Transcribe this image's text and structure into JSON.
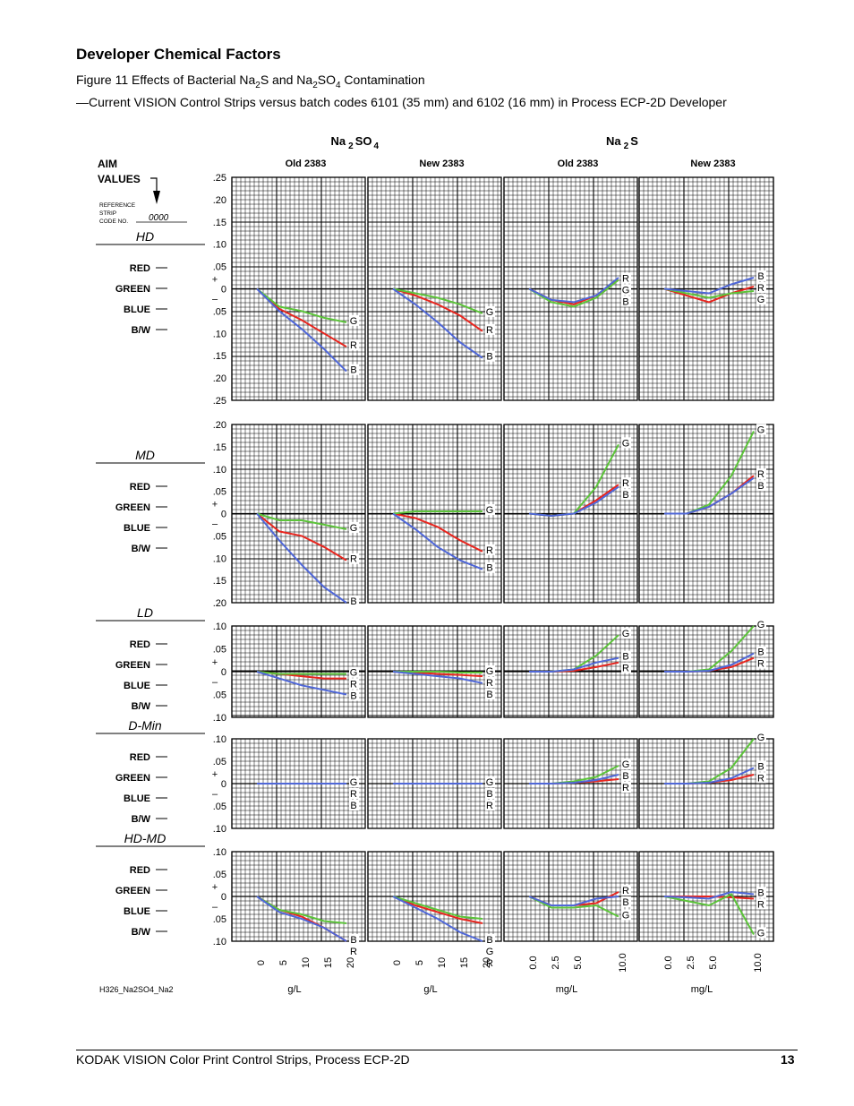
{
  "heading": "Developer Chemical Factors",
  "caption": {
    "figure_prefix": "Figure 11 Effects of Bacterial Na",
    "sub1": "2",
    "mid1": "S and Na",
    "sub2": "2",
    "mid2": "SO",
    "sub3": "4",
    "suffix": " Contamination",
    "line2": "—Current VISION Control Strips versus batch codes 6101 (35 mm) and 6102 (16 mm) in Process ECP-2D Developer"
  },
  "chart_data": {
    "type": "line",
    "chemicals": [
      {
        "base": "Na",
        "sub": "2",
        "rest": "SO",
        "sub2": "4"
      },
      {
        "base": "Na",
        "sub": "2",
        "rest": "S",
        "sub2": ""
      }
    ],
    "panels": [
      {
        "label": "Old 2383",
        "x": [
          0,
          5,
          10,
          15,
          20
        ],
        "tick_labels": [
          "0",
          "5",
          "10",
          "15",
          "20"
        ],
        "unit": "g/L"
      },
      {
        "label": "New 2383",
        "x": [
          0,
          5,
          10,
          15,
          20
        ],
        "tick_labels": [
          "0",
          "5",
          "10",
          "15",
          "20"
        ],
        "unit": "g/L"
      },
      {
        "label": "Old 2383",
        "x": [
          0,
          2.5,
          5,
          7.5,
          10
        ],
        "tick_labels": [
          "0.0",
          "2.5",
          "5.0",
          "10.0"
        ],
        "unit": "mg/L"
      },
      {
        "label": "New 2383",
        "x": [
          0,
          2.5,
          5,
          7.5,
          10
        ],
        "tick_labels": [
          "0.0",
          "2.5",
          "5.0",
          "10.0"
        ],
        "unit": "mg/L"
      }
    ],
    "aim": {
      "label_line1": "AIM",
      "label_line2": "VALUES",
      "ref_line1": "REFERENCE",
      "ref_line2": "STRIP",
      "ref_line3": "CODE NO.",
      "ref_code": "0000"
    },
    "channel_labels": [
      "RED",
      "GREEN",
      "BLUE",
      "B/W"
    ],
    "series_colors": {
      "R": "#e8251e",
      "G": "#5cc43a",
      "B": "#4f67d8"
    },
    "rows": [
      {
        "name": "HD",
        "ylim": [
          -0.25,
          0.25
        ],
        "yticks": [
          ".25",
          ".20",
          ".15",
          ".10",
          ".05",
          "0",
          ".05",
          ".10",
          ".15",
          ".20",
          ".25"
        ],
        "lines": [
          {
            "R": [
              0,
              -0.045,
              -0.07,
              -0.1,
              -0.13
            ],
            "G": [
              0,
              -0.04,
              -0.05,
              -0.065,
              -0.075
            ],
            "B": [
              0,
              -0.05,
              -0.09,
              -0.135,
              -0.185
            ],
            "labels_top_down": [
              "G",
              "R",
              "B"
            ]
          },
          {
            "R": [
              0,
              -0.015,
              -0.035,
              -0.06,
              -0.095
            ],
            "G": [
              0,
              -0.01,
              -0.02,
              -0.035,
              -0.055
            ],
            "B": [
              0,
              -0.035,
              -0.075,
              -0.12,
              -0.155
            ],
            "labels_top_down": [
              "G",
              "R",
              "B"
            ]
          },
          {
            "R": [
              0,
              -0.025,
              -0.035,
              -0.015,
              0.02
            ],
            "G": [
              0,
              -0.03,
              -0.04,
              -0.02,
              0.02
            ],
            "B": [
              0,
              -0.025,
              -0.03,
              -0.015,
              0.025
            ],
            "labels_top_down": [
              "R",
              "G",
              "B"
            ]
          },
          {
            "R": [
              0,
              -0.015,
              -0.03,
              -0.01,
              0.005
            ],
            "G": [
              0,
              -0.01,
              -0.02,
              -0.01,
              -0.005
            ],
            "B": [
              0,
              -0.005,
              -0.01,
              0.01,
              0.025
            ],
            "labels_top_down": [
              "B",
              "R",
              "G"
            ]
          }
        ]
      },
      {
        "name": "MD",
        "ylim": [
          -0.2,
          0.2
        ],
        "yticks": [
          ".20",
          ".15",
          ".10",
          ".05",
          "0",
          ".05",
          ".10",
          ".15",
          ".20"
        ],
        "lines": [
          {
            "R": [
              0,
              -0.04,
              -0.05,
              -0.075,
              -0.105
            ],
            "G": [
              0,
              -0.015,
              -0.015,
              -0.025,
              -0.035
            ],
            "B": [
              0,
              -0.06,
              -0.115,
              -0.165,
              -0.2
            ],
            "labels_top_down": [
              "G",
              "R",
              "B"
            ]
          },
          {
            "R": [
              0,
              -0.01,
              -0.03,
              -0.06,
              -0.085
            ],
            "G": [
              0,
              0.005,
              0.005,
              0.005,
              0.005
            ],
            "B": [
              0,
              -0.035,
              -0.075,
              -0.105,
              -0.125
            ],
            "labels_top_down": [
              "G",
              "R",
              "B"
            ]
          },
          {
            "R": [
              0,
              -0.005,
              0,
              0.03,
              0.065
            ],
            "G": [
              0,
              -0.005,
              0,
              0.06,
              0.155
            ],
            "B": [
              0,
              -0.005,
              0,
              0.025,
              0.06
            ],
            "labels_top_down": [
              "G",
              "R",
              "B"
            ]
          },
          {
            "R": [
              0,
              0,
              0.015,
              0.045,
              0.085
            ],
            "G": [
              0,
              0,
              0.02,
              0.085,
              0.185
            ],
            "B": [
              0,
              0,
              0.015,
              0.045,
              0.08
            ],
            "labels_top_down": [
              "G",
              "R",
              "B"
            ]
          }
        ]
      },
      {
        "name": "LD",
        "ylim": [
          -0.1,
          0.1
        ],
        "yticks": [
          ".10",
          ".05",
          "0",
          ".05",
          ".10"
        ],
        "lines": [
          {
            "R": [
              0,
              -0.005,
              -0.01,
              -0.015,
              -0.015
            ],
            "G": [
              0,
              -0.005,
              -0.005,
              -0.005,
              -0.005
            ],
            "B": [
              0,
              -0.015,
              -0.03,
              -0.04,
              -0.05
            ],
            "labels_top_down": [
              "G",
              "R",
              "B"
            ]
          },
          {
            "R": [
              0,
              -0.002,
              -0.005,
              -0.007,
              -0.01
            ],
            "G": [
              0,
              0,
              0,
              -0.002,
              -0.002
            ],
            "B": [
              0,
              -0.005,
              -0.01,
              -0.015,
              -0.025
            ],
            "labels_top_down": [
              "G",
              "R",
              "B"
            ]
          },
          {
            "R": [
              0,
              0,
              0.002,
              0.01,
              0.02
            ],
            "G": [
              0,
              0,
              0.005,
              0.035,
              0.08
            ],
            "B": [
              0,
              0,
              0.005,
              0.02,
              0.03
            ],
            "labels_top_down": [
              "G",
              "B",
              "R"
            ]
          },
          {
            "R": [
              0,
              0,
              0.002,
              0.01,
              0.03
            ],
            "G": [
              0,
              0,
              0.005,
              0.045,
              0.1
            ],
            "B": [
              0,
              0,
              0.002,
              0.015,
              0.04
            ],
            "labels_top_down": [
              "G",
              "B",
              "R"
            ]
          }
        ]
      },
      {
        "name": "D-Min",
        "ylim": [
          -0.1,
          0.1
        ],
        "yticks": [
          ".10",
          ".05",
          "0",
          ".05",
          ".10"
        ],
        "lines": [
          {
            "R": [
              0,
              0,
              0,
              0,
              0
            ],
            "G": [
              0,
              0,
              0,
              0,
              0
            ],
            "B": [
              0,
              0,
              0,
              0,
              0
            ],
            "labels_top_down": [
              "G",
              "R",
              "B"
            ]
          },
          {
            "R": [
              0,
              0,
              0,
              0,
              0
            ],
            "G": [
              0,
              0,
              0,
              0,
              0
            ],
            "B": [
              0,
              0,
              0,
              0,
              0
            ],
            "labels_top_down": [
              "G",
              "B",
              "R"
            ]
          },
          {
            "R": [
              0,
              0,
              0.002,
              0.005,
              0.01
            ],
            "G": [
              0,
              0,
              0.005,
              0.015,
              0.04
            ],
            "B": [
              0,
              0,
              0.002,
              0.008,
              0.02
            ],
            "labels_top_down": [
              "G",
              "B",
              "R"
            ]
          },
          {
            "R": [
              0,
              0,
              0.002,
              0.008,
              0.02
            ],
            "G": [
              0,
              0,
              0.005,
              0.035,
              0.1
            ],
            "B": [
              0,
              0,
              0.002,
              0.012,
              0.035
            ],
            "labels_top_down": [
              "G",
              "B",
              "R"
            ]
          }
        ]
      },
      {
        "name": "HD-MD",
        "ylim": [
          -0.1,
          0.1
        ],
        "yticks": [
          ".10",
          ".05",
          "0",
          ".05",
          ".10"
        ],
        "lines": [
          {
            "R": [
              0,
              -0.03,
              -0.045,
              -0.07,
              -0.1
            ],
            "G": [
              0,
              -0.03,
              -0.04,
              -0.055,
              -0.06
            ],
            "B": [
              0,
              -0.035,
              -0.05,
              -0.07,
              -0.1
            ],
            "labels_top_down": [
              "B",
              "R"
            ]
          },
          {
            "R": [
              0,
              -0.02,
              -0.035,
              -0.05,
              -0.06
            ],
            "G": [
              0,
              -0.015,
              -0.03,
              -0.045,
              -0.05
            ],
            "B": [
              0,
              -0.025,
              -0.05,
              -0.08,
              -0.1
            ],
            "labels_top_down": [
              "B",
              "G",
              "R"
            ]
          },
          {
            "R": [
              0,
              -0.02,
              -0.02,
              -0.015,
              0.01
            ],
            "G": [
              0,
              -0.025,
              -0.025,
              -0.02,
              -0.045
            ],
            "B": [
              0,
              -0.02,
              -0.02,
              -0.005,
              0
            ],
            "labels_top_down": [
              "R",
              "B",
              "G"
            ]
          },
          {
            "R": [
              0,
              0,
              0,
              -0.002,
              -0.005
            ],
            "G": [
              0,
              -0.01,
              -0.02,
              0.005,
              -0.085
            ],
            "B": [
              0,
              -0.002,
              -0.005,
              0.01,
              0.005
            ],
            "labels_top_down": [
              "B",
              "R",
              "G"
            ]
          }
        ]
      }
    ]
  },
  "figure_code": "H326_Na2SO4_Na2",
  "footer": {
    "title": "KODAK VISION Color Print Control Strips, Process ECP-2D",
    "page_number": "13"
  }
}
